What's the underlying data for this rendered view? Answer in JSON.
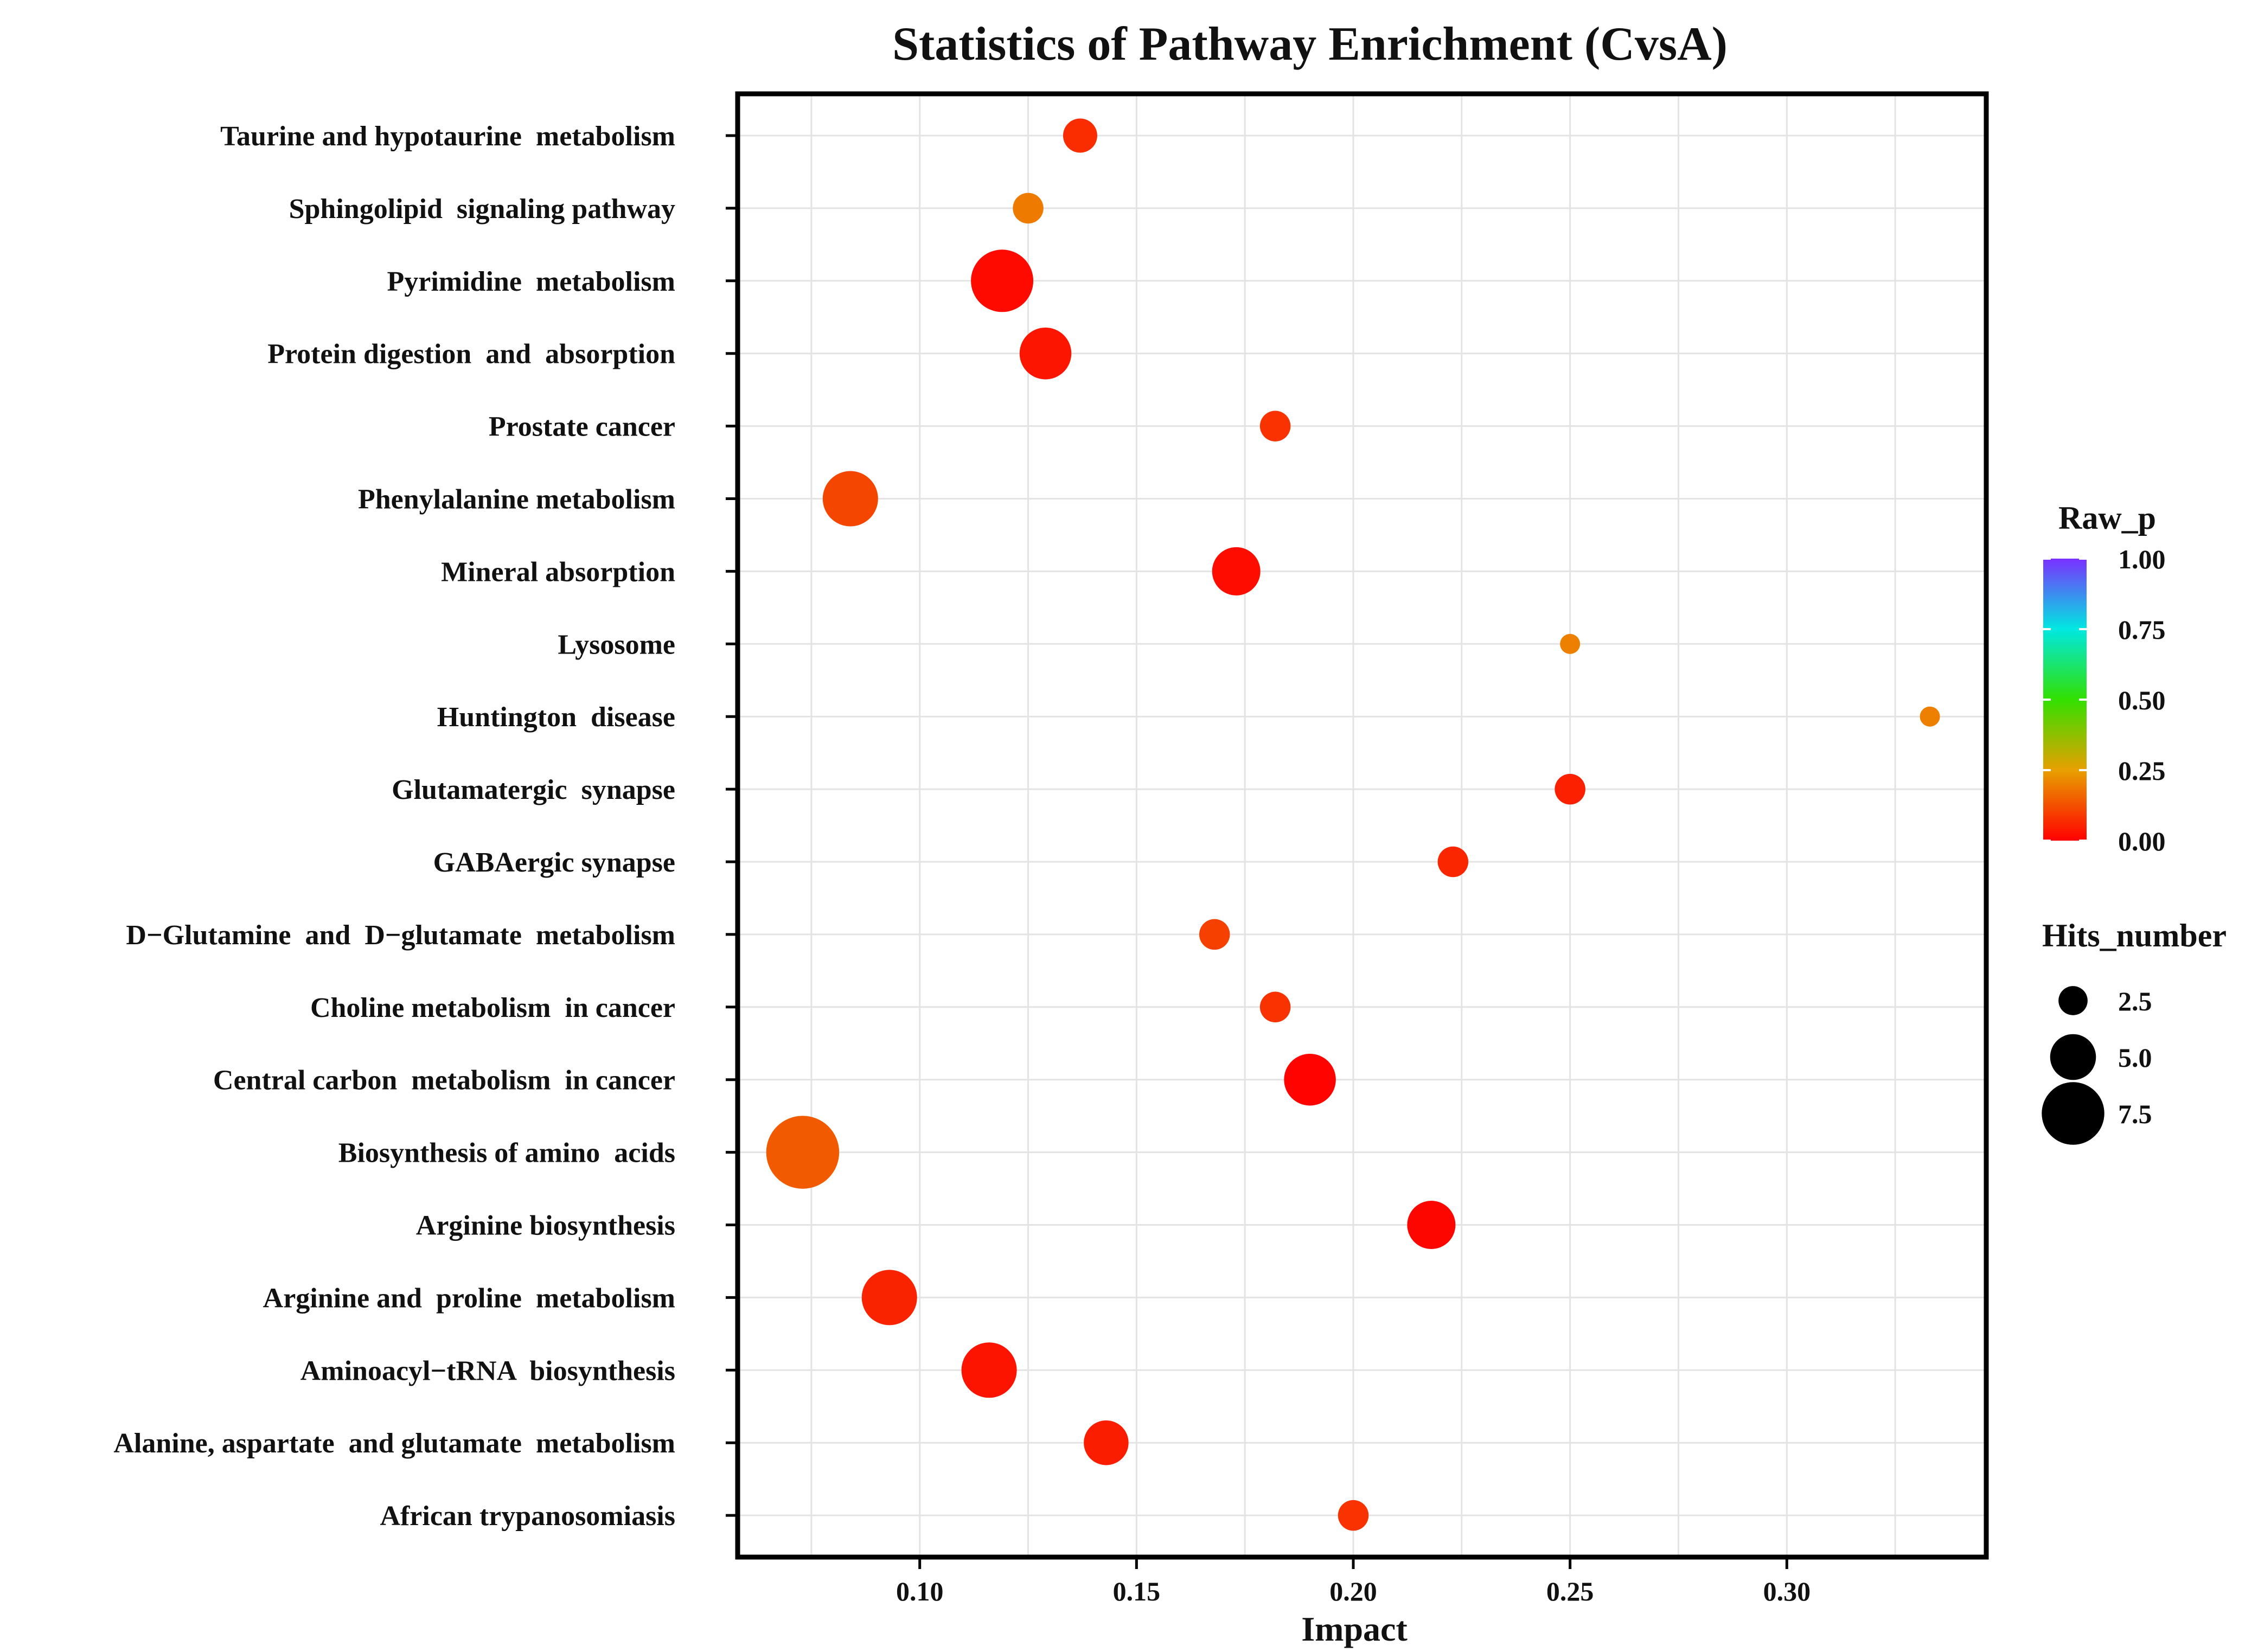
{
  "chart_data": {
    "type": "scatter",
    "title": "Statistics of Pathway Enrichment (CvsA)",
    "xlabel": "Impact",
    "ylabel": "",
    "xlim": [
      0.058,
      0.346
    ],
    "x_ticks": [
      "0.10",
      "0.15",
      "0.20",
      "0.25",
      "0.30"
    ],
    "x_tick_values": [
      0.1,
      0.15,
      0.2,
      0.25,
      0.3
    ],
    "grid": true,
    "points": [
      {
        "pathway": "Taurine and hypotaurine  metabolism",
        "impact": 0.137,
        "raw_p": 0.07,
        "hits": 3
      },
      {
        "pathway": "Sphingolipid  signaling pathway",
        "impact": 0.125,
        "raw_p": 0.19,
        "hits": 2.5
      },
      {
        "pathway": "Pyrimidine  metabolism",
        "impact": 0.119,
        "raw_p": 0.015,
        "hits": 7
      },
      {
        "pathway": "Protein digestion  and  absorption",
        "impact": 0.129,
        "raw_p": 0.035,
        "hits": 5.5
      },
      {
        "pathway": "Prostate cancer",
        "impact": 0.182,
        "raw_p": 0.08,
        "hits": 2.5
      },
      {
        "pathway": "Phenylalanine metabolism",
        "impact": 0.084,
        "raw_p": 0.11,
        "hits": 6
      },
      {
        "pathway": "Mineral absorption",
        "impact": 0.173,
        "raw_p": 0.02,
        "hits": 5
      },
      {
        "pathway": "Lysosome",
        "impact": 0.25,
        "raw_p": 0.2,
        "hits": 1
      },
      {
        "pathway": "Huntington  disease",
        "impact": 0.333,
        "raw_p": 0.2,
        "hits": 1
      },
      {
        "pathway": "Glutamatergic  synapse",
        "impact": 0.25,
        "raw_p": 0.05,
        "hits": 2.5
      },
      {
        "pathway": "GABAergic synapse",
        "impact": 0.223,
        "raw_p": 0.06,
        "hits": 2.5
      },
      {
        "pathway": "D−Glutamine  and  D−glutamate  metabolism",
        "impact": 0.168,
        "raw_p": 0.1,
        "hits": 2.5
      },
      {
        "pathway": "Choline metabolism  in cancer",
        "impact": 0.182,
        "raw_p": 0.08,
        "hits": 2.5
      },
      {
        "pathway": "Central carbon  metabolism  in cancer",
        "impact": 0.19,
        "raw_p": 0.005,
        "hits": 5.5
      },
      {
        "pathway": "Biosynthesis of amino  acids",
        "impact": 0.073,
        "raw_p": 0.14,
        "hits": 8.5
      },
      {
        "pathway": "Arginine biosynthesis",
        "impact": 0.218,
        "raw_p": 0.01,
        "hits": 5
      },
      {
        "pathway": "Arginine and  proline  metabolism",
        "impact": 0.093,
        "raw_p": 0.055,
        "hits": 6
      },
      {
        "pathway": "Aminoacyl−tRNA  biosynthesis",
        "impact": 0.116,
        "raw_p": 0.03,
        "hits": 6
      },
      {
        "pathway": "Alanine, aspartate  and glutamate  metabolism",
        "impact": 0.143,
        "raw_p": 0.045,
        "hits": 4.5
      },
      {
        "pathway": "African trypanosomiasis",
        "impact": 0.2,
        "raw_p": 0.08,
        "hits": 2.5
      }
    ],
    "color_legend": {
      "title": "Raw_p",
      "ticks": [
        "1.00",
        "0.75",
        "0.50",
        "0.25",
        "0.00"
      ],
      "tick_values": [
        1.0,
        0.75,
        0.5,
        0.25,
        0.0
      ],
      "colors_bottom_to_top": [
        "#ff0000",
        "#e8a000",
        "#33e000",
        "#00e8e0",
        "#7a30ff"
      ]
    },
    "size_legend": {
      "title": "Hits_number",
      "labels": [
        "2.5",
        "5.0",
        "7.5"
      ],
      "values": [
        2.5,
        5.0,
        7.5
      ],
      "color": "#000000"
    }
  }
}
